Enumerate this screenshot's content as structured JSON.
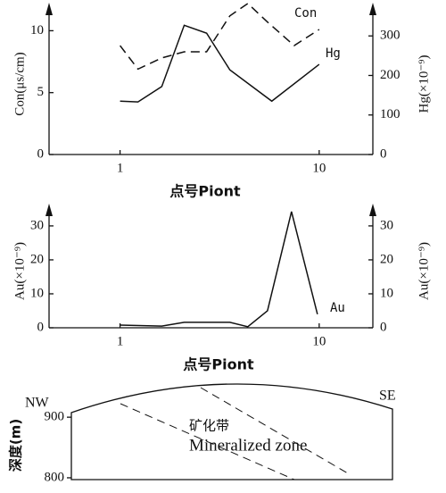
{
  "chart_data": [
    {
      "type": "line",
      "log_x": true,
      "xlim": [
        0.44,
        18.6
      ],
      "xticks": [
        1,
        10
      ],
      "xlabel": "点号Piont",
      "ylabel": "Con(μs/cm)",
      "ylim": [
        0,
        11.4
      ],
      "yticks": [
        0,
        5,
        10
      ],
      "y2label": "Hg(×10⁻⁹)",
      "y2lim": [
        0,
        357
      ],
      "y2ticks": [
        0,
        100,
        200,
        300
      ],
      "series": [
        {
          "name": "Con",
          "color": "#111111",
          "dashed": true,
          "x": [
            1,
            1.23,
            1.62,
            2.1,
            2.72,
            3.56,
            4.38,
            5.5,
            7.49,
            10
          ],
          "values": [
            8.8,
            6.9,
            7.8,
            8.3,
            8.3,
            11.2,
            12.2,
            10.7,
            8.8,
            10.1
          ]
        },
        {
          "name": "Hg",
          "color": "#111111",
          "dashed": false,
          "axis": "y2",
          "x": [
            1,
            1.23,
            1.62,
            2.1,
            2.72,
            3.56,
            5.78,
            10
          ],
          "values": [
            135,
            133,
            172,
            327,
            307,
            214,
            135,
            228
          ]
        }
      ]
    },
    {
      "type": "line",
      "log_x": true,
      "xlim": [
        0.44,
        18.6
      ],
      "xticks": [
        1,
        10
      ],
      "xlabel": "点号Piont",
      "ylabel": "Au(×10⁻⁹)",
      "ylim": [
        0,
        33.4
      ],
      "yticks": [
        0,
        10,
        20,
        30
      ],
      "y2label": "Au(×10⁻⁹)",
      "y2lim": [
        0,
        33.4
      ],
      "y2ticks": [
        0,
        10,
        20,
        30
      ],
      "series": [
        {
          "name": "Au",
          "color": "#111111",
          "dashed": false,
          "x": [
            1,
            1.62,
            2.1,
            3.56,
            4.38,
            5.5,
            7.26,
            9.8
          ],
          "values": [
            0.8,
            0.5,
            1.6,
            1.6,
            0.3,
            5,
            34.2,
            4
          ]
        }
      ]
    },
    {
      "type": "section",
      "ylabel": "深度(m)",
      "ylim": [
        797,
        940
      ],
      "yticks": [
        900,
        800
      ],
      "annotations": [
        "NW",
        "SE",
        "矿化带",
        "Mineralized zone"
      ]
    }
  ]
}
